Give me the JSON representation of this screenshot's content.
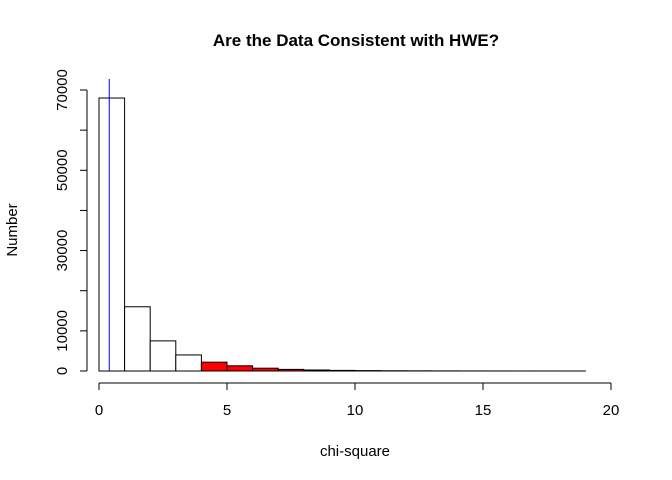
{
  "chart_data": {
    "type": "bar",
    "title": "Are the Data Consistent with HWE?",
    "xlabel": "chi-square",
    "ylabel": "Number",
    "xlim": [
      0,
      20
    ],
    "ylim": [
      0,
      70000
    ],
    "x_ticks": [
      0,
      5,
      10,
      15,
      20
    ],
    "y_ticks": [
      0,
      10000,
      30000,
      50000,
      70000
    ],
    "bin_width": 1,
    "bins": [
      {
        "x": 0,
        "count": 68000,
        "color": "#ffffff"
      },
      {
        "x": 1,
        "count": 16000,
        "color": "#ffffff"
      },
      {
        "x": 2,
        "count": 7500,
        "color": "#ffffff"
      },
      {
        "x": 3,
        "count": 4000,
        "color": "#ffffff"
      },
      {
        "x": 4,
        "count": 2200,
        "color": "#ff0000"
      },
      {
        "x": 5,
        "count": 1300,
        "color": "#ff0000"
      },
      {
        "x": 6,
        "count": 700,
        "color": "#ff0000"
      },
      {
        "x": 7,
        "count": 400,
        "color": "#ff0000"
      },
      {
        "x": 8,
        "count": 250,
        "color": "#ff0000"
      },
      {
        "x": 9,
        "count": 150,
        "color": "#ff0000"
      },
      {
        "x": 10,
        "count": 100,
        "color": "#ff0000"
      },
      {
        "x": 11,
        "count": 60,
        "color": "#ff0000"
      },
      {
        "x": 12,
        "count": 40,
        "color": "#ff0000"
      },
      {
        "x": 13,
        "count": 25,
        "color": "#ff0000"
      },
      {
        "x": 14,
        "count": 15,
        "color": "#ff0000"
      },
      {
        "x": 15,
        "count": 10,
        "color": "#ff0000"
      },
      {
        "x": 16,
        "count": 6,
        "color": "#ff0000"
      },
      {
        "x": 17,
        "count": 4,
        "color": "#ff0000"
      },
      {
        "x": 18,
        "count": 2,
        "color": "#ff0000"
      }
    ],
    "vertical_line": {
      "x": 0.4,
      "color": "#0000ff"
    },
    "grid": false
  }
}
